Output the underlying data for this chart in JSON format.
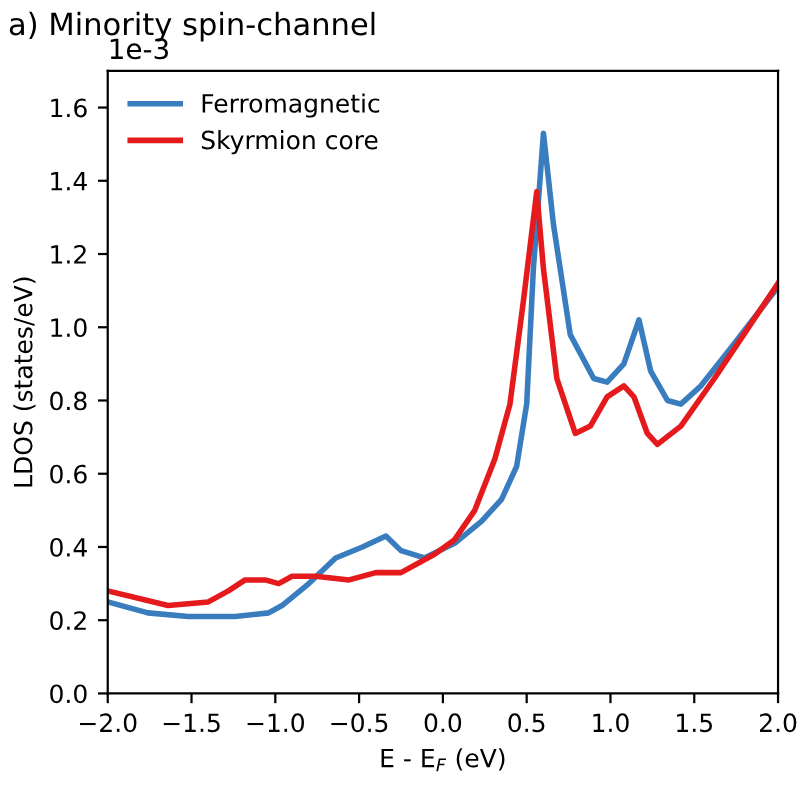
{
  "chart_data": {
    "type": "line",
    "title": "a) Minority spin-channel",
    "xlabel": "E - E$_{F}$ (eV)",
    "ylabel": "LDOS (states/eV)",
    "annotations": [
      "1e-3"
    ],
    "xlim": [
      -2.0,
      2.0
    ],
    "xticks": [
      {
        "value": -2,
        "label": "−2.0"
      },
      {
        "value": -1.5,
        "label": "−1.5"
      },
      {
        "value": -1,
        "label": "−1.0"
      },
      {
        "value": -0.5,
        "label": "−0.5"
      },
      {
        "value": 0,
        "label": "0.0"
      },
      {
        "value": 0.5,
        "label": "0.5"
      },
      {
        "value": 1,
        "label": "1.0"
      },
      {
        "value": 1.5,
        "label": "1.5"
      },
      {
        "value": 2,
        "label": "2.0"
      }
    ],
    "ylim": [
      0.0,
      1.7
    ],
    "yticks": [
      {
        "value": 0,
        "label": "0.0"
      },
      0.2,
      0.4,
      0.6,
      0.8,
      {
        "value": 1,
        "label": "1.0"
      },
      1.2,
      1.4,
      1.6
    ],
    "grid": false,
    "legend": "top left",
    "line_style": "solid",
    "marker": "none",
    "series": [
      {
        "name": "Ferromagnetic",
        "color": "#3a7dbf",
        "x": [
          -2.0,
          -1.76,
          -1.52,
          -1.24,
          -1.04,
          -0.96,
          -0.8,
          -0.64,
          -0.48,
          -0.34,
          -0.25,
          -0.11,
          0.07,
          0.23,
          0.35,
          0.44,
          0.5,
          0.54,
          0.6,
          0.66,
          0.76,
          0.9,
          0.98,
          1.08,
          1.17,
          1.24,
          1.34,
          1.42,
          1.54,
          1.73,
          2.0
        ],
        "values": [
          0.25,
          0.22,
          0.21,
          0.21,
          0.22,
          0.24,
          0.3,
          0.37,
          0.4,
          0.43,
          0.39,
          0.37,
          0.41,
          0.47,
          0.53,
          0.62,
          0.79,
          1.16,
          1.53,
          1.28,
          0.98,
          0.86,
          0.85,
          0.9,
          1.02,
          0.88,
          0.8,
          0.79,
          0.84,
          0.95,
          1.11
        ]
      },
      {
        "name": "Skyrmion core",
        "color": "#e41a1c",
        "x": [
          -2.0,
          -1.64,
          -1.4,
          -1.28,
          -1.18,
          -1.06,
          -0.98,
          -0.9,
          -0.76,
          -0.56,
          -0.4,
          -0.25,
          -0.05,
          0.07,
          0.19,
          0.31,
          0.4,
          0.48,
          0.56,
          0.6,
          0.68,
          0.79,
          0.88,
          0.98,
          1.08,
          1.14,
          1.22,
          1.28,
          1.42,
          1.62,
          1.81,
          2.0
        ],
        "values": [
          0.28,
          0.24,
          0.25,
          0.28,
          0.31,
          0.31,
          0.3,
          0.32,
          0.32,
          0.31,
          0.33,
          0.33,
          0.38,
          0.42,
          0.5,
          0.64,
          0.79,
          1.07,
          1.37,
          1.16,
          0.86,
          0.71,
          0.73,
          0.81,
          0.84,
          0.81,
          0.71,
          0.68,
          0.73,
          0.86,
          0.99,
          1.12
        ]
      }
    ]
  }
}
